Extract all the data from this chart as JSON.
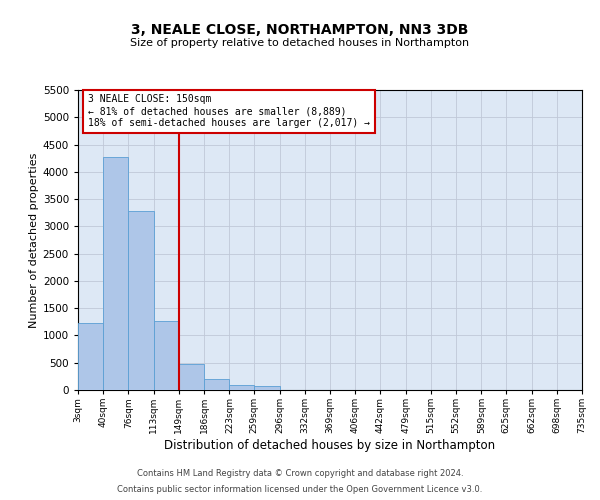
{
  "title": "3, NEALE CLOSE, NORTHAMPTON, NN3 3DB",
  "subtitle": "Size of property relative to detached houses in Northampton",
  "xlabel": "Distribution of detached houses by size in Northampton",
  "ylabel": "Number of detached properties",
  "footnote1": "Contains HM Land Registry data © Crown copyright and database right 2024.",
  "footnote2": "Contains public sector information licensed under the Open Government Licence v3.0.",
  "property_label": "3 NEALE CLOSE: 150sqm",
  "annotation_line1": "← 81% of detached houses are smaller (8,889)",
  "annotation_line2": "18% of semi-detached houses are larger (2,017) →",
  "bin_labels": [
    "3sqm",
    "40sqm",
    "76sqm",
    "113sqm",
    "149sqm",
    "186sqm",
    "223sqm",
    "259sqm",
    "296sqm",
    "332sqm",
    "369sqm",
    "406sqm",
    "442sqm",
    "479sqm",
    "515sqm",
    "552sqm",
    "589sqm",
    "625sqm",
    "662sqm",
    "698sqm",
    "735sqm"
  ],
  "bin_edges": [
    3,
    40,
    76,
    113,
    149,
    186,
    223,
    259,
    296,
    332,
    369,
    406,
    442,
    479,
    515,
    552,
    589,
    625,
    662,
    698,
    735
  ],
  "bar_values": [
    1230,
    4280,
    3280,
    1270,
    480,
    200,
    95,
    65,
    0,
    0,
    0,
    0,
    0,
    0,
    0,
    0,
    0,
    0,
    0,
    0
  ],
  "bar_color": "#aec6e8",
  "bar_edge_color": "#5a9fd4",
  "vline_x": 149,
  "vline_color": "#cc0000",
  "annotation_box_color": "#cc0000",
  "ax_facecolor": "#dde8f5",
  "background_color": "#ffffff",
  "grid_color": "#c0c8d8",
  "ylim": [
    0,
    5500
  ],
  "yticks": [
    0,
    500,
    1000,
    1500,
    2000,
    2500,
    3000,
    3500,
    4000,
    4500,
    5000,
    5500
  ],
  "title_fontsize": 10,
  "subtitle_fontsize": 8,
  "footnote_fontsize": 6
}
